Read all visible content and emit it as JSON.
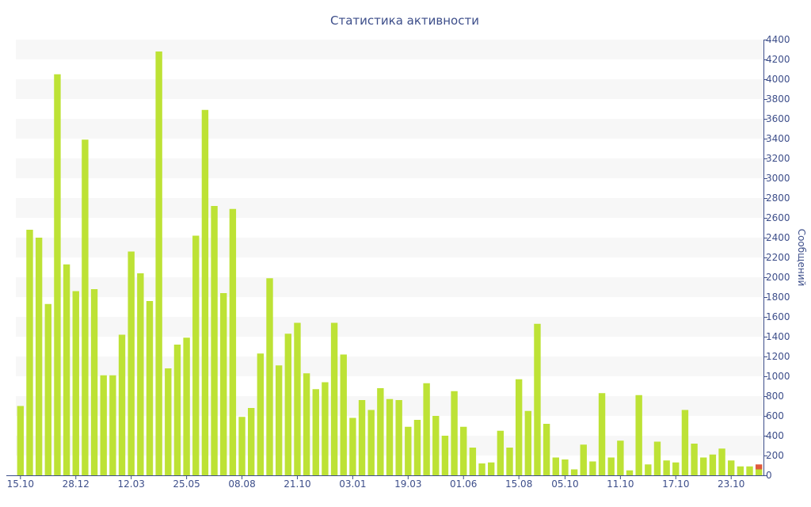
{
  "chart_data": {
    "type": "bar",
    "title": "Статистика активности",
    "xlabel": "",
    "ylabel": "Сообщений",
    "ylim": [
      0,
      4400
    ],
    "y_ticks": [
      0,
      200,
      400,
      600,
      800,
      1000,
      1200,
      1400,
      1600,
      1800,
      2000,
      2200,
      2400,
      2600,
      2800,
      3000,
      3200,
      3400,
      3600,
      3800,
      4000,
      4200,
      4400
    ],
    "y_axis_position": "right",
    "grid": "alternating horizontal bands",
    "x_ticks": [
      {
        "label": "15.10",
        "index": 0
      },
      {
        "label": "28.12",
        "index": 6
      },
      {
        "label": "12.03",
        "index": 12
      },
      {
        "label": "25.05",
        "index": 18
      },
      {
        "label": "08.08",
        "index": 24
      },
      {
        "label": "21.10",
        "index": 30
      },
      {
        "label": "03.01",
        "index": 36
      },
      {
        "label": "19.03",
        "index": 42
      },
      {
        "label": "01.06",
        "index": 48
      },
      {
        "label": "15.08",
        "index": 54
      },
      {
        "label": "05.10",
        "index": 59
      },
      {
        "label": "11.10",
        "index": 65
      },
      {
        "label": "17.10",
        "index": 71
      },
      {
        "label": "23.10",
        "index": 77
      }
    ],
    "values": [
      700,
      2480,
      2400,
      1730,
      4050,
      2130,
      1860,
      3390,
      1880,
      1010,
      1010,
      1420,
      2260,
      2040,
      1760,
      4280,
      1080,
      1320,
      1390,
      2420,
      3690,
      2720,
      1840,
      2690,
      590,
      680,
      1230,
      1990,
      1110,
      1430,
      1540,
      1030,
      870,
      940,
      1540,
      1220,
      580,
      760,
      660,
      880,
      770,
      760,
      490,
      560,
      930,
      600,
      400,
      850,
      490,
      280,
      120,
      130,
      450,
      280,
      970,
      650,
      1530,
      520,
      180,
      160,
      60,
      310,
      140,
      830,
      180,
      350,
      50,
      810,
      110,
      340,
      150,
      130,
      660,
      320,
      180,
      210,
      270,
      150,
      90,
      90,
      110
    ],
    "highlight": {
      "index": 80,
      "value": 110,
      "color": "#e05a3c",
      "base_value": 60
    },
    "colors": {
      "bar": "#bde235",
      "highlight": "#e05a3c",
      "text": "#3d4e8a",
      "band": "#f7f7f7",
      "axis": "#3d4e8a"
    }
  }
}
